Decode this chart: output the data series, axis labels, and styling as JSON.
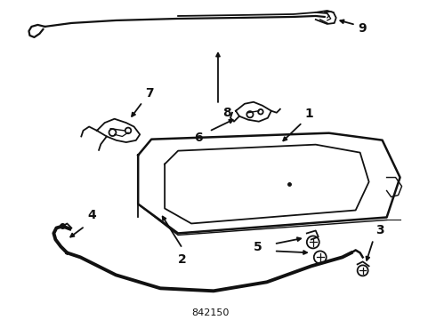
{
  "diagram_id": "842150",
  "bg_color": "#ffffff",
  "line_color": "#111111",
  "figsize": [
    4.9,
    3.6
  ],
  "dpi": 100
}
